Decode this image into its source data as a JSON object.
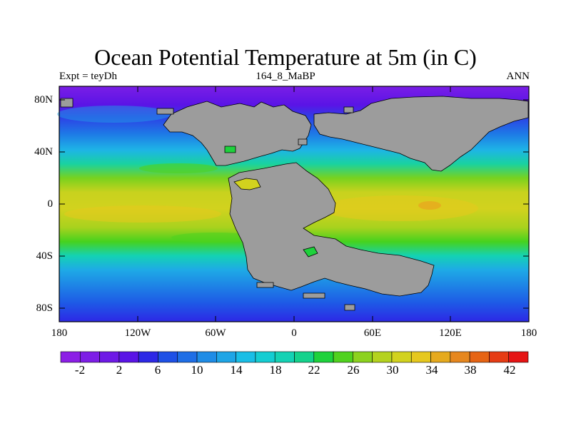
{
  "figure": {
    "title": "Ocean Potential Temperature at 5m (in C)",
    "left_subtitle": "Expt = teyDh",
    "center_subtitle": "164_8_MaBP",
    "right_subtitle": "ANN"
  },
  "axes": {
    "lat_labels": [
      "80N",
      "40N",
      "0",
      "40S",
      "80S"
    ],
    "lon_labels": [
      "180",
      "120W",
      "60W",
      "0",
      "60E",
      "120E",
      "180"
    ]
  },
  "colorbar": {
    "labels": [
      "-2",
      "2",
      "6",
      "10",
      "14",
      "18",
      "22",
      "26",
      "30",
      "34",
      "38",
      "42"
    ],
    "colors": [
      "#8c1ee6",
      "#7d1ee6",
      "#6e19e6",
      "#5a14e6",
      "#2d28e6",
      "#1e50e6",
      "#1e6ee6",
      "#1e8ce6",
      "#1ea5e6",
      "#19bee6",
      "#14cdd2",
      "#14d2b4",
      "#14d28c",
      "#1ed23c",
      "#50d21e",
      "#8cd21e",
      "#b4d21e",
      "#d2d21e",
      "#e6c81e",
      "#e6aa1e",
      "#e6871e",
      "#e66414",
      "#e63c14",
      "#e61414"
    ]
  },
  "colors": {
    "land": "#9c9c9c",
    "ocean_polar": "#7a1ee6",
    "ocean_tropical": "#d2d21e"
  }
}
